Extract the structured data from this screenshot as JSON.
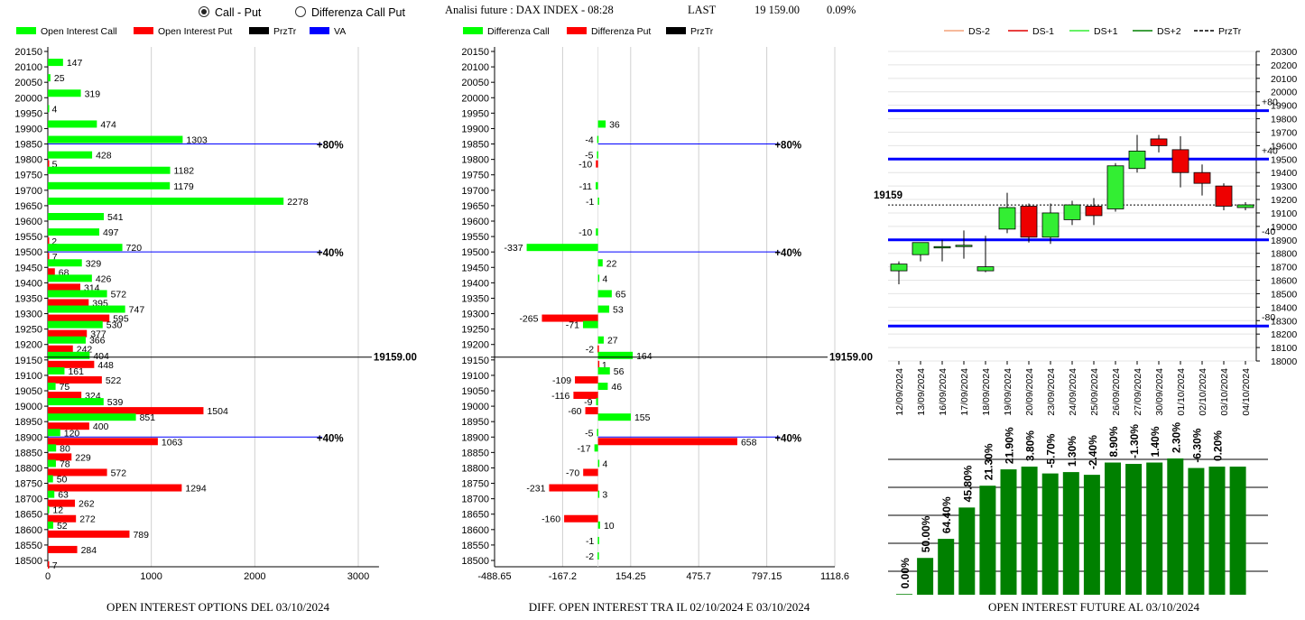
{
  "top_bar": {
    "radio_call_put": "Call - Put",
    "radio_diff": "Differenza Call Put",
    "selected": "call_put",
    "title": "Analisi future : DAX INDEX - 08:28",
    "last_label": "LAST",
    "last_value": "19 159.00",
    "last_change": "0.09%"
  },
  "colors": {
    "call": "#00ff00",
    "put": "#ff0000",
    "prztr": "#000000",
    "va": "#0000ff",
    "level": "#0000ff",
    "future_bar": "#008000"
  },
  "chart_data": [
    {
      "type": "bar",
      "orientation": "horizontal",
      "legend": [
        "Open Interest Call",
        "Open Interest Put",
        "PrzTr",
        "VA"
      ],
      "title": "OPEN INTEREST OPTIONS DEL 03/10/2024",
      "categories": [
        20150,
        20100,
        20050,
        20000,
        19950,
        19900,
        19850,
        19800,
        19750,
        19700,
        19650,
        19600,
        19550,
        19500,
        19450,
        19400,
        19350,
        19300,
        19250,
        19200,
        19150,
        19100,
        19050,
        19000,
        18950,
        18900,
        18850,
        18800,
        18750,
        18700,
        18650,
        18600,
        18550,
        18500
      ],
      "series": [
        {
          "name": "Open Interest Call",
          "values": [
            null,
            147,
            25,
            319,
            4,
            474,
            1303,
            428,
            1182,
            1179,
            2278,
            541,
            497,
            720,
            329,
            426,
            572,
            747,
            530,
            366,
            404,
            161,
            75,
            539,
            851,
            120,
            80,
            78,
            50,
            63,
            12,
            52,
            null,
            null
          ]
        },
        {
          "name": "Open Interest Put",
          "values": [
            null,
            null,
            null,
            null,
            null,
            null,
            null,
            5,
            null,
            null,
            null,
            null,
            2,
            7,
            68,
            314,
            395,
            595,
            377,
            242,
            448,
            522,
            324,
            1504,
            400,
            1063,
            229,
            572,
            1294,
            262,
            272,
            789,
            284,
            7
          ]
        }
      ],
      "xticks": [
        "0",
        "1000",
        "2000",
        "3000"
      ],
      "xlim": [
        0,
        3200
      ],
      "price_line": {
        "category": 19159,
        "label": "19159.00"
      },
      "va_lines": [
        {
          "category": 19850,
          "label": "80%",
          "extent": 2650
        },
        {
          "category": 19500,
          "label": "40%",
          "extent": 2650
        },
        {
          "category": 18900,
          "label": "40%",
          "extent": 2650
        }
      ]
    },
    {
      "type": "bar",
      "orientation": "horizontal",
      "legend": [
        "Differenza Call",
        "Differenza Put",
        "PrzTr"
      ],
      "title": "DIFF. OPEN INTEREST TRA IL 02/10/2024 E 03/10/2024",
      "categories": [
        20150,
        20100,
        20050,
        20000,
        19950,
        19900,
        19850,
        19800,
        19750,
        19700,
        19650,
        19600,
        19550,
        19500,
        19450,
        19400,
        19350,
        19300,
        19250,
        19200,
        19150,
        19100,
        19050,
        19000,
        18950,
        18900,
        18850,
        18800,
        18750,
        18700,
        18650,
        18600,
        18550,
        18500
      ],
      "series": [
        {
          "name": "Differenza Call",
          "values": [
            null,
            null,
            null,
            null,
            null,
            36,
            -4,
            -5,
            null,
            -11,
            -1,
            null,
            -10,
            -337,
            22,
            4,
            65,
            53,
            -71,
            27,
            164,
            56,
            46,
            -9,
            155,
            -5,
            -17,
            4,
            null,
            3,
            null,
            10,
            -1,
            -2
          ]
        },
        {
          "name": "Differenza Put",
          "values": [
            null,
            null,
            null,
            null,
            null,
            null,
            null,
            -10,
            null,
            null,
            null,
            null,
            null,
            null,
            null,
            null,
            null,
            -265,
            null,
            -2,
            1,
            -109,
            -116,
            -60,
            null,
            658,
            null,
            -70,
            -231,
            null,
            -160,
            null,
            null,
            null
          ]
        }
      ],
      "xticks": [
        "-488.65",
        "-167.2",
        "154.25",
        "475.7",
        "797.15",
        "1118.6"
      ],
      "xlim": [
        -488.65,
        1118.6
      ],
      "price_line": {
        "category": 19159,
        "label": "19159.00"
      },
      "va_lines": [
        {
          "category": 19850,
          "label": "80%",
          "extent": 860
        },
        {
          "category": 19500,
          "label": "40%",
          "extent": 860
        },
        {
          "category": 18900,
          "label": "40%",
          "extent": 860
        }
      ]
    },
    {
      "type": "candlestick",
      "legend": [
        "DS-2",
        "DS-1",
        "DS+1",
        "DS+2",
        "PrzTr"
      ],
      "legend_colors": [
        "#f4a27a",
        "#e00000",
        "#33ee33",
        "#008000",
        "#000000"
      ],
      "x": [
        "12/09/2024",
        "13/09/2024",
        "16/09/2024",
        "17/09/2024",
        "18/09/2024",
        "19/09/2024",
        "20/09/2024",
        "23/09/2024",
        "24/09/2024",
        "25/09/2024",
        "26/09/2024",
        "27/09/2024",
        "30/09/2024",
        "01/10/2024",
        "02/10/2024",
        "03/10/2024",
        "04/10/2024"
      ],
      "open": [
        18670,
        18790,
        18850,
        18850,
        18670,
        18980,
        19150,
        18920,
        19050,
        19150,
        19130,
        19430,
        19650,
        19570,
        19400,
        19300,
        19140
      ],
      "high": [
        18740,
        18860,
        18900,
        18970,
        18930,
        19250,
        19170,
        19170,
        19190,
        19210,
        19470,
        19680,
        19680,
        19670,
        19460,
        19320,
        19180
      ],
      "low": [
        18570,
        18740,
        18740,
        18760,
        18660,
        18950,
        18880,
        18870,
        19010,
        19010,
        19110,
        19400,
        19550,
        19290,
        19230,
        19120,
        19120
      ],
      "close": [
        18720,
        18880,
        18850,
        18860,
        18700,
        19140,
        18920,
        19100,
        19160,
        19080,
        19450,
        19560,
        19600,
        19400,
        19320,
        19150,
        19160
      ],
      "ylim": [
        18000,
        20300
      ],
      "yticks": [
        18000,
        18100,
        18200,
        18300,
        18400,
        18500,
        18600,
        18700,
        18800,
        18900,
        19000,
        19100,
        19200,
        19300,
        19400,
        19500,
        19600,
        19700,
        19800,
        19900,
        20000,
        20100,
        20200,
        20300
      ],
      "levels": [
        {
          "value": 19860,
          "label": "+80"
        },
        {
          "value": 19500,
          "label": "+40"
        },
        {
          "value": 18900,
          "label": "-40"
        },
        {
          "value": 18260,
          "label": "-80"
        }
      ],
      "last_price": {
        "value": 19159,
        "label": "19159"
      }
    },
    {
      "type": "bar",
      "title": "OPEN INTEREST FUTURE AL 03/10/2024",
      "values": [
        0.5,
        27,
        41,
        64,
        80,
        92,
        94,
        89,
        90,
        88,
        97,
        96,
        97,
        100,
        93,
        94,
        94
      ],
      "labels": [
        "0.00%",
        "50.00%",
        "64.40%",
        "45.80%",
        "21.30%",
        "21.90%",
        "3.80%",
        "-5.70%",
        "1.30%",
        "-2.40%",
        "8.90%",
        "-1.30%",
        "1.40%",
        "2.30%",
        "-6.30%",
        "0.20%",
        ""
      ],
      "ylim": [
        0,
        100
      ]
    }
  ]
}
